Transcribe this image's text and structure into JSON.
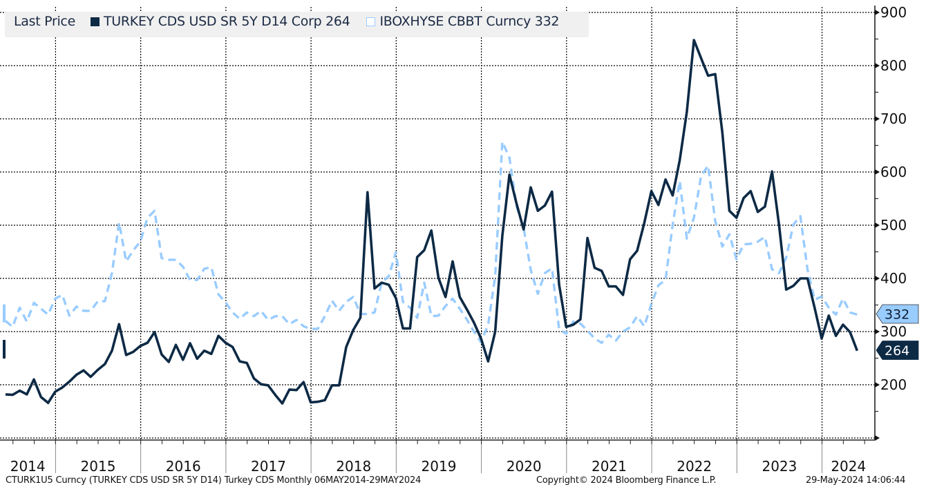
{
  "legend": {
    "title": "Last Price",
    "series1_label": "TURKEY CDS USD SR 5Y D14 Corp 264",
    "series2_label": "IBOXHYSE CBBT Curncy 332"
  },
  "footer": {
    "left": "CTURK1U5 Curncy (TURKEY CDS USD SR 5Y D14) Turkey CDS  Monthly 06MAY2014-29MAY2024",
    "center": "Copyright© 2024 Bloomberg Finance L.P.",
    "right": "29-May-2024 14:06:44"
  },
  "colors": {
    "series1": "#0d2a45",
    "series2": "#99ccff",
    "grid": "#000000",
    "legend_bg": "#f0f0f0"
  },
  "chart_data": {
    "type": "line",
    "title": "",
    "xlabel": "",
    "ylabel": "",
    "frequency": "Monthly",
    "start_month": "2014-05",
    "ylim": [
      100,
      900
    ],
    "yticks": [
      200,
      300,
      400,
      500,
      600,
      700,
      800,
      900
    ],
    "ygrid": [
      100,
      200,
      300,
      400,
      500,
      600,
      700,
      800,
      900
    ],
    "xtick_labels": [
      "2014",
      "2015",
      "2016",
      "2017",
      "2018",
      "2019",
      "2020",
      "2021",
      "2022",
      "2023",
      "2024"
    ],
    "grid": true,
    "legend_position": "top-left",
    "series": [
      {
        "name": "TURKEY CDS USD SR 5Y D14 Corp",
        "last_value": "264",
        "style": "solid",
        "values": [
          182,
          181,
          189,
          182,
          210,
          177,
          166,
          187,
          195,
          206,
          219,
          227,
          215,
          228,
          239,
          264,
          314,
          256,
          262,
          273,
          279,
          299,
          257,
          243,
          275,
          247,
          278,
          249,
          264,
          258,
          292,
          279,
          271,
          244,
          241,
          212,
          201,
          199,
          181,
          165,
          191,
          190,
          205,
          167,
          168,
          171,
          199,
          199,
          271,
          303,
          326,
          562,
          381,
          392,
          388,
          363,
          306,
          306,
          440,
          453,
          490,
          401,
          365,
          432,
          365,
          342,
          317,
          287,
          244,
          300,
          480,
          595,
          541,
          492,
          571,
          527,
          537,
          563,
          388,
          309,
          313,
          323,
          476,
          420,
          414,
          385,
          385,
          369,
          436,
          452,
          504,
          564,
          538,
          586,
          556,
          622,
          713,
          848,
          814,
          781,
          784,
          674,
          527,
          514,
          551,
          564,
          525,
          535,
          601,
          500,
          379,
          386,
          400,
          400,
          345,
          287,
          330,
          292,
          313,
          299,
          264
        ]
      },
      {
        "name": "IBOXHYSE CBBT Curncy",
        "last_value": "332",
        "style": "dashed",
        "values": [
          320,
          309,
          345,
          319,
          354,
          343,
          332,
          362,
          369,
          330,
          347,
          339,
          339,
          357,
          357,
          410,
          505,
          432,
          453,
          469,
          514,
          527,
          438,
          435,
          435,
          422,
          397,
          397,
          418,
          421,
          370,
          355,
          336,
          324,
          336,
          329,
          339,
          322,
          329,
          329,
          314,
          322,
          310,
          305,
          305,
          329,
          358,
          339,
          356,
          365,
          333,
          333,
          336,
          392,
          404,
          449,
          356,
          345,
          326,
          392,
          329,
          330,
          348,
          362,
          343,
          323,
          300,
          280,
          313,
          404,
          657,
          627,
          536,
          495,
          416,
          371,
          410,
          419,
          304,
          296,
          319,
          315,
          302,
          287,
          279,
          294,
          283,
          300,
          308,
          329,
          310,
          352,
          387,
          397,
          501,
          583,
          475,
          514,
          592,
          612,
          508,
          460,
          483,
          436,
          464,
          465,
          469,
          478,
          417,
          410,
          439,
          501,
          517,
          417,
          360,
          366,
          345,
          332,
          362,
          336,
          332
        ]
      }
    ]
  }
}
